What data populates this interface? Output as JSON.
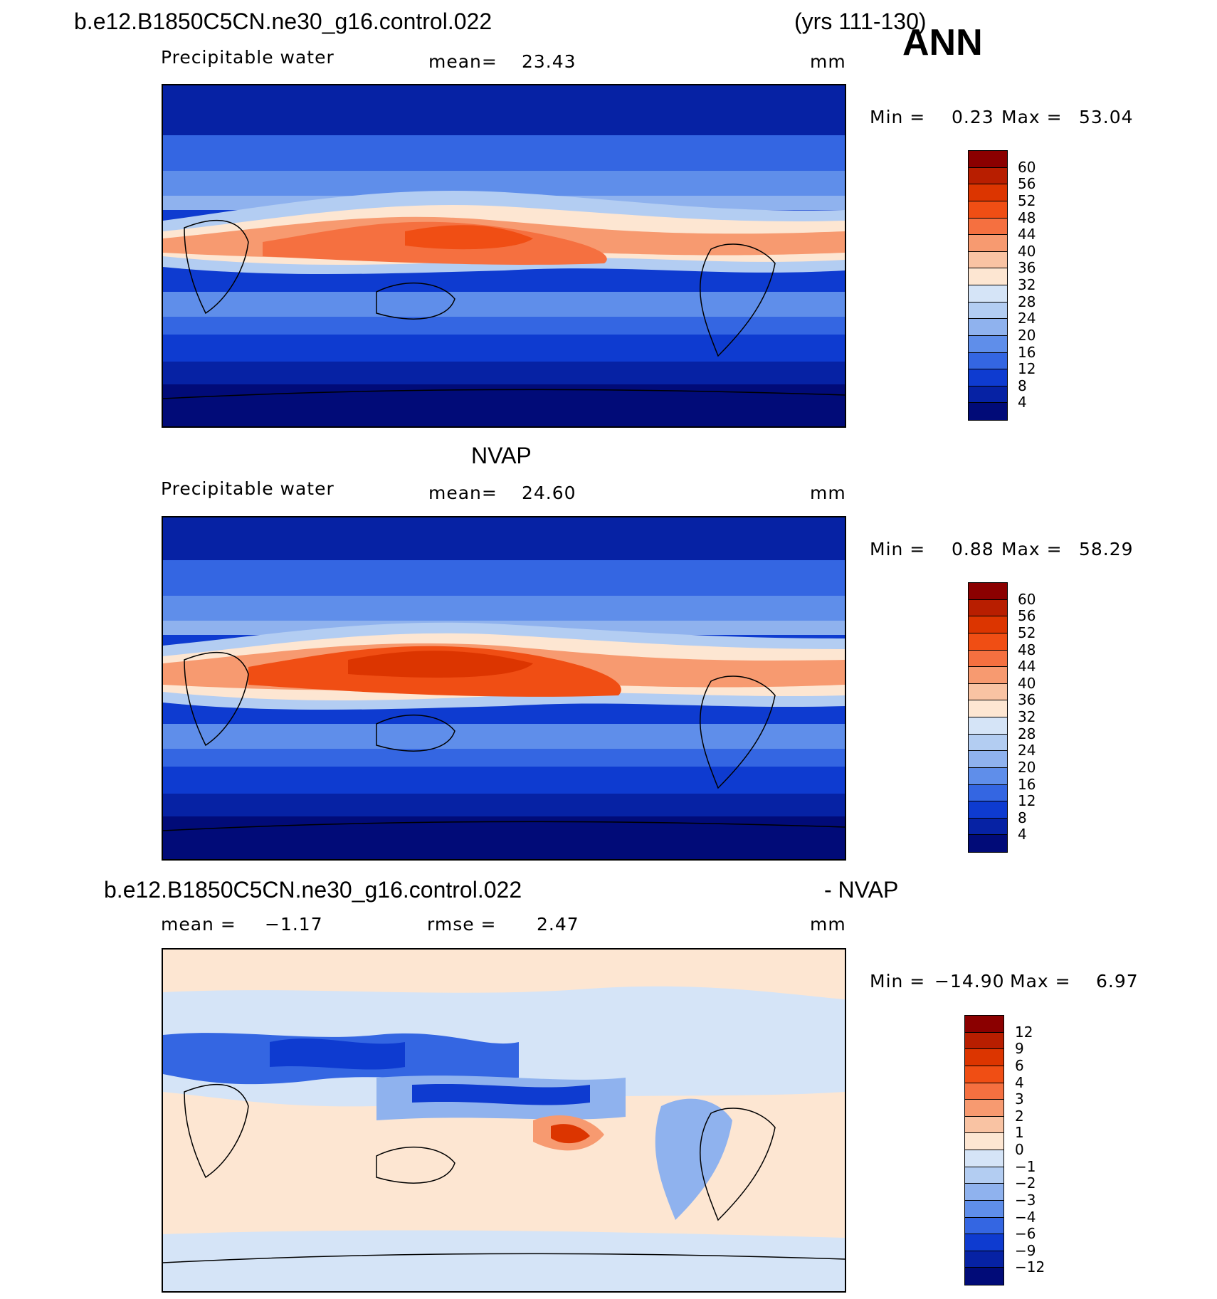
{
  "header": {
    "case_name": "b.e12.B1850C5CN.ne30_g16.control.022",
    "years": "(yrs 111-130)",
    "season": "ANN"
  },
  "panels": [
    {
      "id": "model",
      "title": "",
      "variable": "Precipitable water",
      "stat_label": "mean=",
      "stat_value": "23.43",
      "units": "mm",
      "min_label": "Min =",
      "min_value": "0.23",
      "max_label": "Max =",
      "max_value": "53.04",
      "colorbar_labels": [
        "60",
        "56",
        "52",
        "48",
        "44",
        "40",
        "36",
        "32",
        "28",
        "24",
        "20",
        "16",
        "12",
        "8",
        "4"
      ],
      "colors": [
        "#8b0000",
        "#b81e00",
        "#dc3500",
        "#f04e14",
        "#f57040",
        "#f79a70",
        "#f9c3a3",
        "#fde6d2",
        "#d5e4f7",
        "#b3cdf2",
        "#8fb2ee",
        "#5f8eea",
        "#3466e2",
        "#0e3bd0",
        "#0622a4",
        "#010b78"
      ]
    },
    {
      "id": "obs",
      "title": "NVAP",
      "variable": "Precipitable water",
      "stat_label": "mean=",
      "stat_value": "24.60",
      "units": "mm",
      "min_label": "Min =",
      "min_value": "0.88",
      "max_label": "Max =",
      "max_value": "58.29",
      "colorbar_labels": [
        "60",
        "56",
        "52",
        "48",
        "44",
        "40",
        "36",
        "32",
        "28",
        "24",
        "20",
        "16",
        "12",
        "8",
        "4"
      ],
      "colors": [
        "#8b0000",
        "#b81e00",
        "#dc3500",
        "#f04e14",
        "#f57040",
        "#f79a70",
        "#f9c3a3",
        "#fde6d2",
        "#d5e4f7",
        "#b3cdf2",
        "#8fb2ee",
        "#5f8eea",
        "#3466e2",
        "#0e3bd0",
        "#0622a4",
        "#010b78"
      ]
    },
    {
      "id": "diff",
      "title_left": "b.e12.B1850C5CN.ne30_g16.control.022",
      "title_right": "- NVAP",
      "stat_label": "mean =",
      "stat_value": "−1.17",
      "rmse_label": "rmse =",
      "rmse_value": "2.47",
      "units": "mm",
      "min_label": "Min =",
      "min_value": "−14.90",
      "max_label": "Max =",
      "max_value": "6.97",
      "colorbar_labels": [
        "12",
        "9",
        "6",
        "4",
        "3",
        "2",
        "1",
        "0",
        "−1",
        "−2",
        "−3",
        "−4",
        "−6",
        "−9",
        "−12"
      ],
      "colors": [
        "#8b0000",
        "#b81e00",
        "#dc3500",
        "#f04e14",
        "#f57040",
        "#f79a70",
        "#f9c3a3",
        "#fde6d2",
        "#d5e4f7",
        "#b3cdf2",
        "#8fb2ee",
        "#5f8eea",
        "#3466e2",
        "#0e3bd0",
        "#0622a4",
        "#010b78"
      ]
    }
  ]
}
